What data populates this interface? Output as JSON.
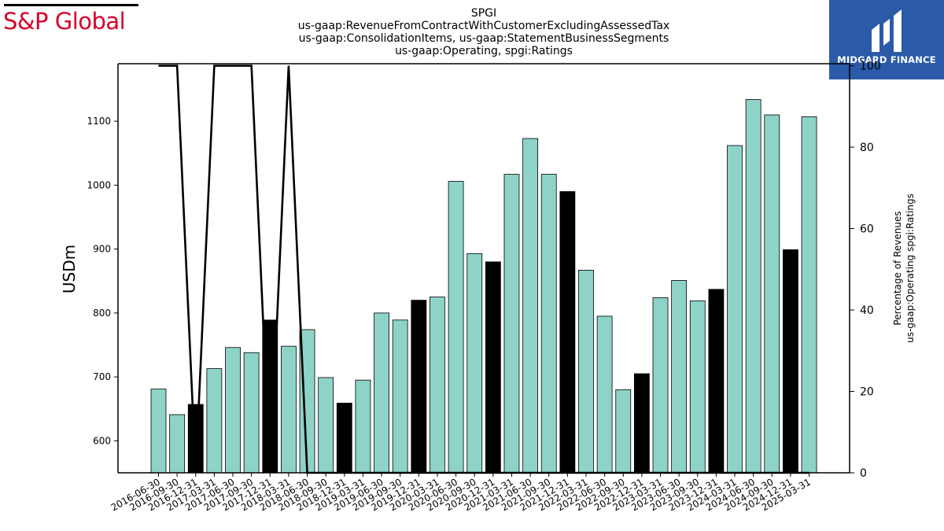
{
  "brand": {
    "name": "S&P Global",
    "color": "#d6002a"
  },
  "partner": {
    "name": "MIDGARD FINANCE",
    "color": "#2b5aa8"
  },
  "chart_data": {
    "type": "bar",
    "title_lines": [
      "SPGI",
      "us-gaap:RevenueFromContractWithCustomerExcludingAssessedTax",
      "us-gaap:ConsolidationItems, us-gaap:StatementBusinessSegments",
      "us-gaap:Operating, spgi:Ratings"
    ],
    "ylabel": "USDm",
    "y2label_lines": [
      "Percentage of Revenues",
      "us-gaap:Operating spgi:Ratings"
    ],
    "ylim": [
      550,
      1190
    ],
    "y_ticks": [
      600,
      700,
      800,
      900,
      1000,
      1100
    ],
    "y2lim": [
      0,
      100.5
    ],
    "y2_ticks": [
      0,
      20,
      40,
      60,
      80,
      100
    ],
    "categories": [
      "2016-06-30",
      "2016-09-30",
      "2016-12-31",
      "2017-03-31",
      "2017-06-30",
      "2017-09-30",
      "2017-12-31",
      "2018-03-31",
      "2018-06-30",
      "2018-09-30",
      "2018-12-31",
      "2019-03-31",
      "2019-06-30",
      "2019-09-30",
      "2019-12-31",
      "2020-03-31",
      "2020-06-30",
      "2020-09-30",
      "2020-12-31",
      "2021-03-31",
      "2021-06-30",
      "2021-09-30",
      "2021-12-31",
      "2022-03-31",
      "2022-06-30",
      "2022-09-30",
      "2022-12-31",
      "2023-03-31",
      "2023-06-30",
      "2023-09-30",
      "2023-12-31",
      "2024-03-31",
      "2024-06-30",
      "2024-09-30",
      "2024-12-31",
      "2025-03-31"
    ],
    "series": [
      {
        "type": "bar",
        "axis": "left",
        "values": [
          681,
          641,
          657,
          713,
          746,
          738,
          789,
          748,
          774,
          699,
          659,
          695,
          800,
          789,
          820,
          825,
          1006,
          893,
          880,
          1017,
          1073,
          1017,
          990,
          867,
          795,
          680,
          705,
          824,
          851,
          819,
          837,
          1062,
          1134,
          1110,
          899,
          1107
        ],
        "colors": [
          "#8dd3c7",
          "#8dd3c7",
          "#000000",
          "#8dd3c7",
          "#8dd3c7",
          "#8dd3c7",
          "#000000",
          "#8dd3c7",
          "#8dd3c7",
          "#8dd3c7",
          "#000000",
          "#8dd3c7",
          "#8dd3c7",
          "#8dd3c7",
          "#000000",
          "#8dd3c7",
          "#8dd3c7",
          "#8dd3c7",
          "#000000",
          "#8dd3c7",
          "#8dd3c7",
          "#8dd3c7",
          "#000000",
          "#8dd3c7",
          "#8dd3c7",
          "#8dd3c7",
          "#000000",
          "#8dd3c7",
          "#8dd3c7",
          "#8dd3c7",
          "#000000",
          "#8dd3c7",
          "#8dd3c7",
          "#8dd3c7",
          "#000000",
          "#8dd3c7"
        ]
      },
      {
        "type": "line",
        "axis": "right",
        "color": "#000000",
        "values": [
          100,
          100,
          0,
          100,
          100,
          100,
          0,
          100,
          0,
          0,
          0,
          0,
          0,
          0,
          0,
          0,
          0,
          0,
          0,
          0,
          0,
          0,
          0,
          0,
          0,
          0,
          0,
          0,
          0,
          0,
          0,
          0,
          0,
          0,
          0,
          0
        ]
      }
    ],
    "grid": false
  }
}
